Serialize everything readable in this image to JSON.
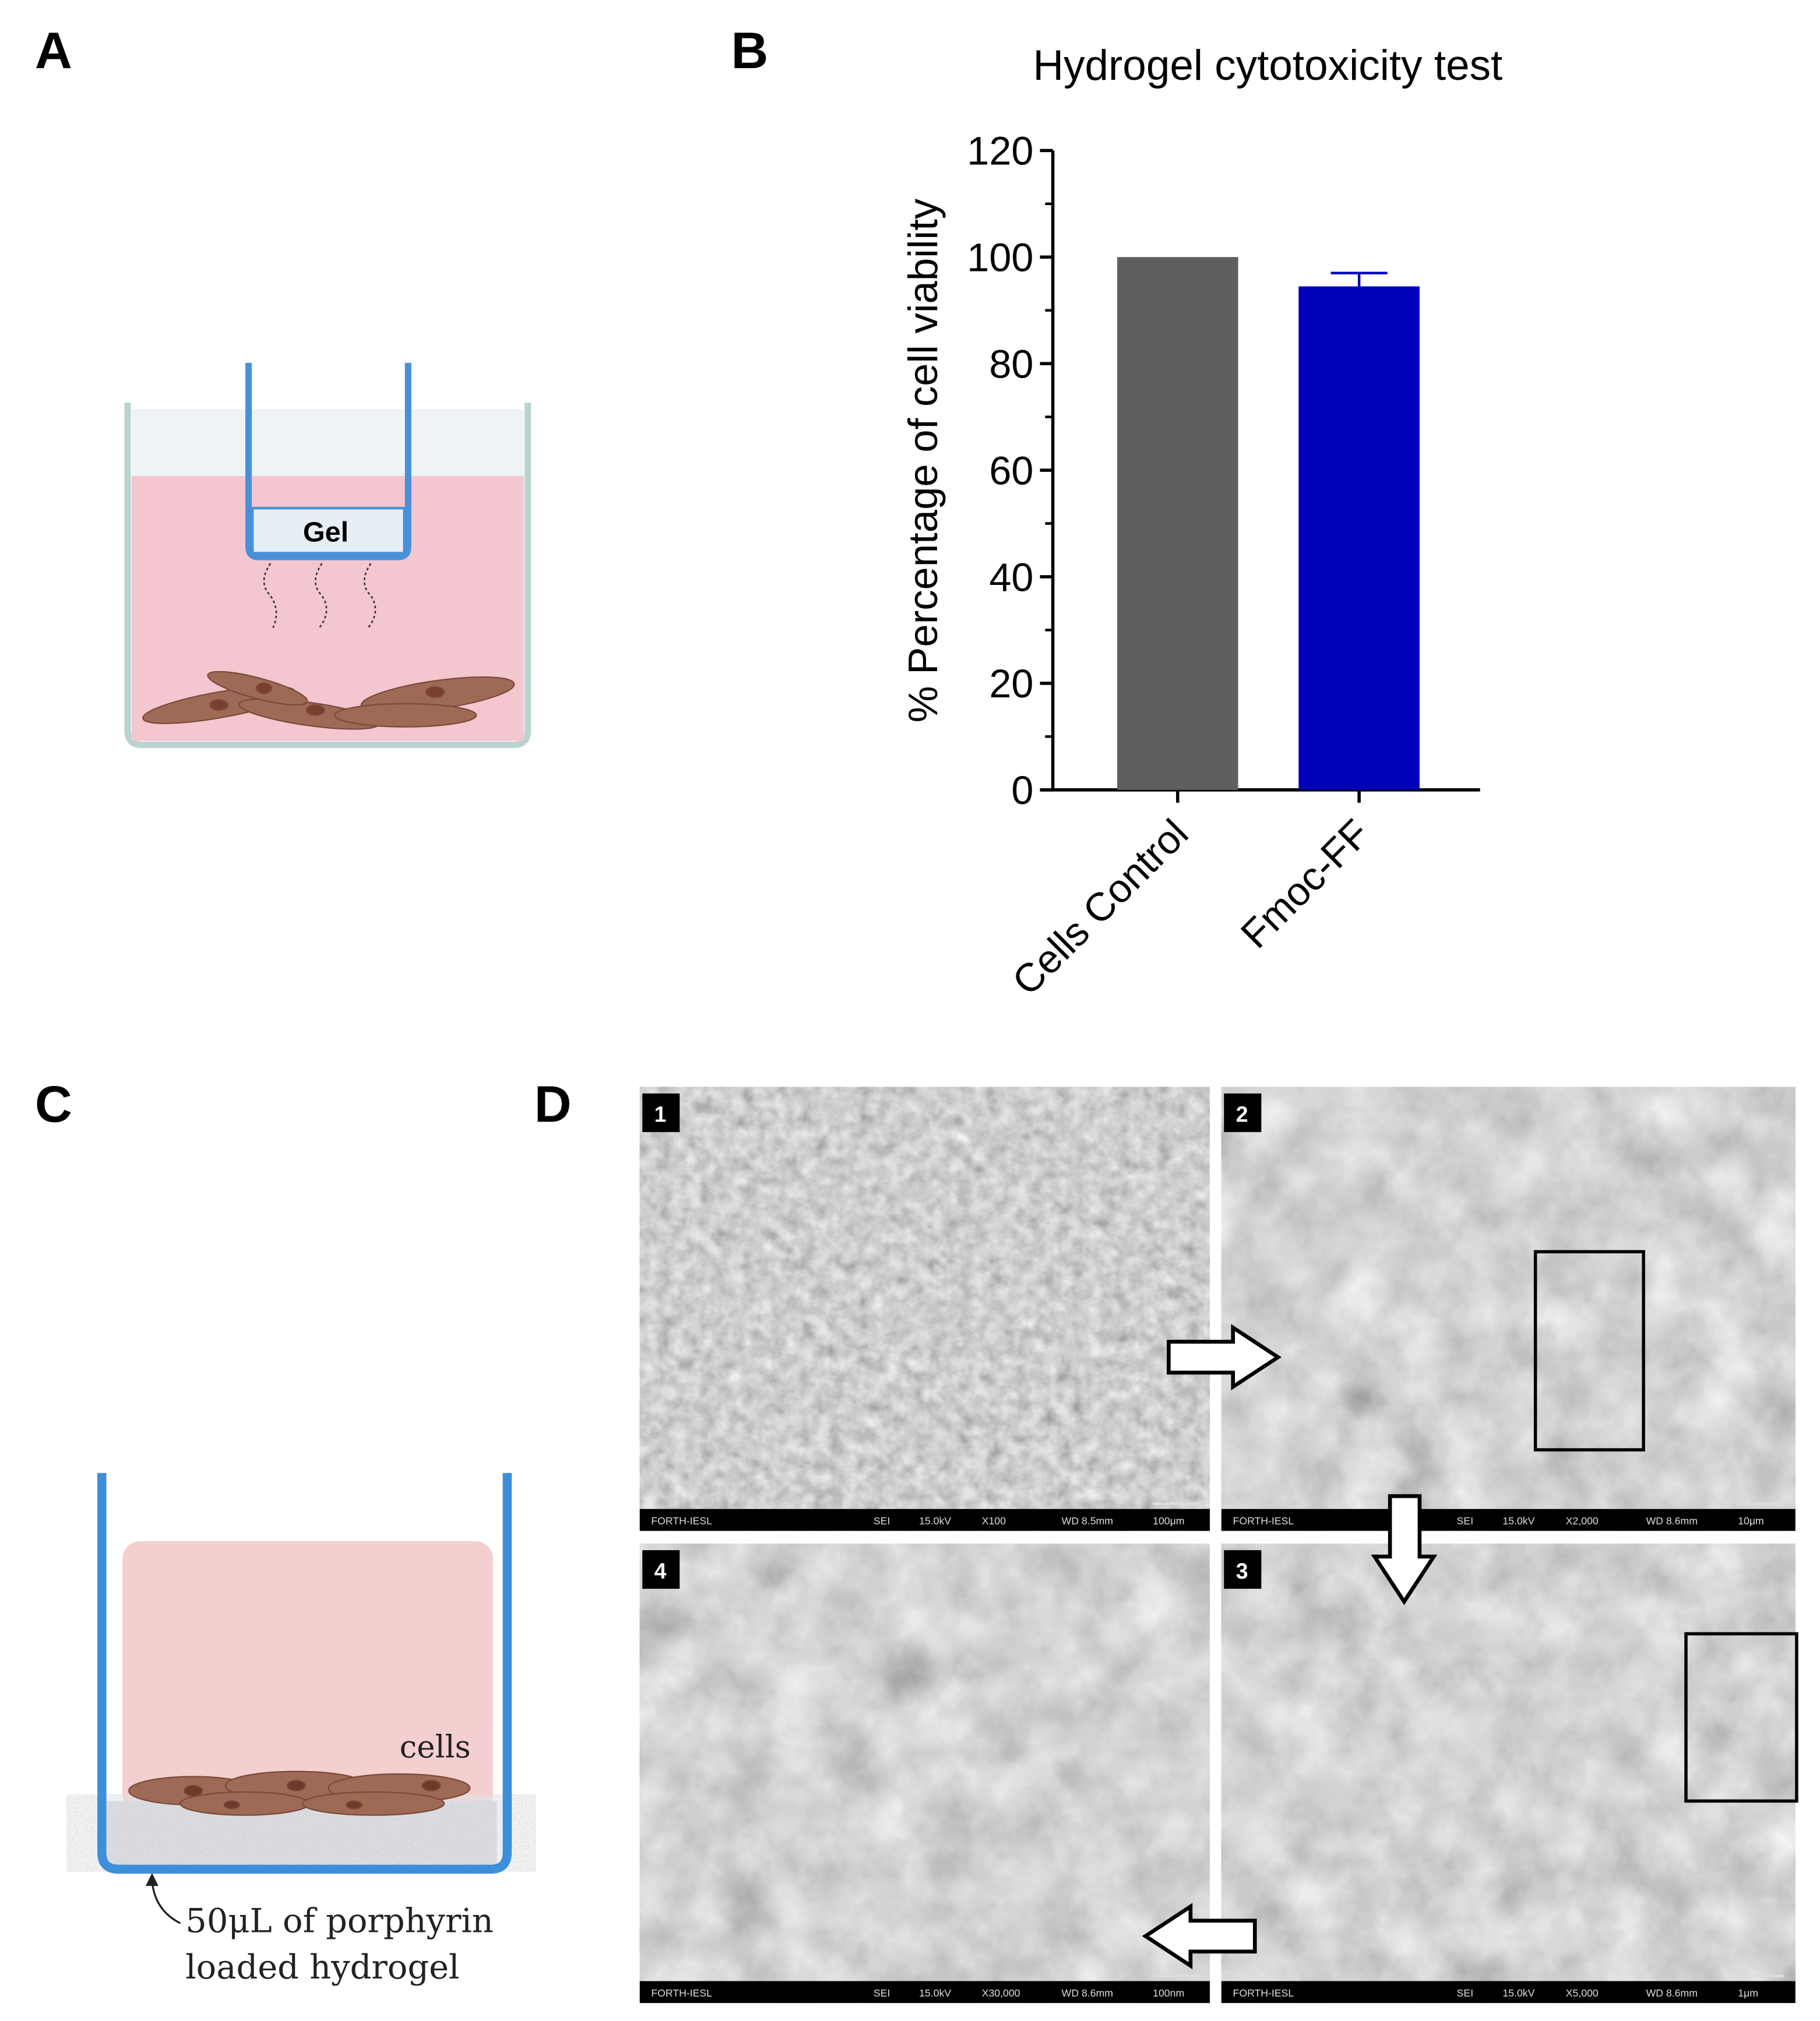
{
  "panels": {
    "a": "A",
    "b": "B",
    "c": "C",
    "d": "D"
  },
  "panel_a": {
    "gel_label": "Gel",
    "medium_color": "#f4c6d0",
    "wall_color": "#4a90d9"
  },
  "panel_c": {
    "cells_label": "cells",
    "hydrogel_line1": "50μL of porphyrin",
    "hydrogel_line2": "loaded hydrogel"
  },
  "chart_data": {
    "type": "bar",
    "title": "Hydrogel cytotoxicity test",
    "ylabel": "% Percentage of cell viability",
    "xlabel": "",
    "categories": [
      "Cells Control",
      "Fmoc-FF"
    ],
    "values": [
      100,
      94.5
    ],
    "error_upper": [
      0,
      2.5
    ],
    "colors": [
      "#5f5f5f",
      "#0000b8"
    ],
    "ylim": [
      0,
      120
    ],
    "yticks": [
      "0",
      "20",
      "40",
      "60",
      "80",
      "100",
      "120"
    ],
    "grid": false
  },
  "sem": [
    {
      "badge": "1",
      "info": [
        "FORTH-IESL",
        "SEI",
        "15.0kV",
        "X100",
        "WD 8.5mm",
        "100μm"
      ]
    },
    {
      "badge": "2",
      "info": [
        "FORTH-IESL",
        "SEI",
        "15.0kV",
        "X2,000",
        "WD 8.6mm",
        "10μm"
      ]
    },
    {
      "badge": "4",
      "info": [
        "FORTH-IESL",
        "SEI",
        "15.0kV",
        "X30,000",
        "WD 8.6mm",
        "100nm"
      ]
    },
    {
      "badge": "3",
      "info": [
        "FORTH-IESL",
        "SEI",
        "15.0kV",
        "X5,000",
        "WD 8.6mm",
        "1μm"
      ]
    }
  ]
}
